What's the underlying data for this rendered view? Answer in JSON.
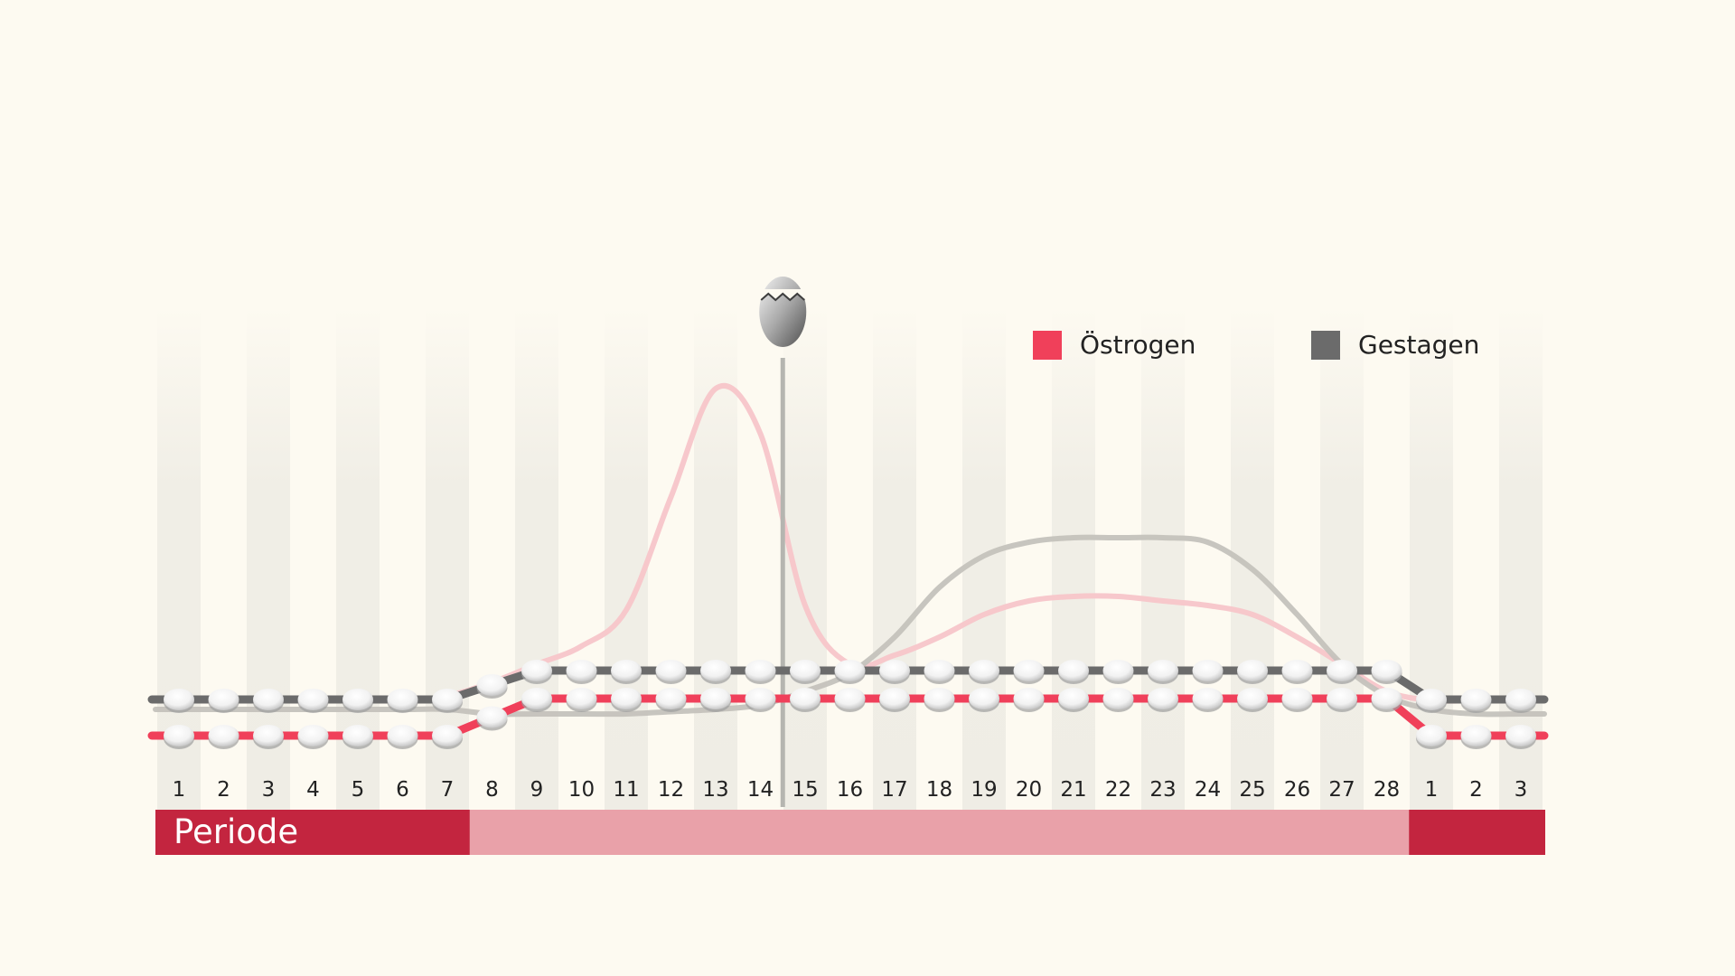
{
  "chart_data": {
    "type": "line",
    "title": "",
    "xlabel": "",
    "ylabel": "",
    "grid": false,
    "legend_position": "top-right",
    "colors": {
      "oestrogen": "#f0405a",
      "gestagen": "#6b6b6b",
      "natural_oestrogen": "#f7c5c9",
      "natural_gestagen": "#c4c2bc",
      "period_band": "#c3253f",
      "cycle_band": "#e9a1a9",
      "column_stripe": "#efede5",
      "background": "#fdfaf1"
    },
    "x_labels": [
      "1",
      "2",
      "3",
      "4",
      "5",
      "6",
      "7",
      "8",
      "9",
      "10",
      "11",
      "12",
      "13",
      "14",
      "15",
      "16",
      "17",
      "18",
      "19",
      "20",
      "21",
      "22",
      "23",
      "24",
      "25",
      "26",
      "27",
      "28",
      "1",
      "2",
      "3"
    ],
    "series": [
      {
        "name": "Östrogen",
        "key": "oestrogen",
        "style": "pill",
        "values": [
          1,
          1,
          1,
          1,
          1,
          1,
          1,
          1.5,
          2,
          2,
          2,
          2,
          2,
          2,
          2,
          2,
          2,
          2,
          2,
          2,
          2,
          2,
          2,
          2,
          2,
          2,
          2,
          2,
          1,
          1,
          1
        ]
      },
      {
        "name": "Gestagen",
        "key": "gestagen",
        "style": "pill",
        "values": [
          1,
          1,
          1,
          1,
          1,
          1,
          1,
          1.4,
          1.8,
          1.8,
          1.8,
          1.8,
          1.8,
          1.8,
          1.8,
          1.8,
          1.8,
          1.8,
          1.8,
          1.8,
          1.8,
          1.8,
          1.8,
          1.8,
          1.8,
          1.8,
          1.8,
          1.8,
          1,
          1,
          1
        ]
      },
      {
        "key": "natural_oestrogen",
        "style": "natural",
        "values": [
          1.1,
          1.1,
          1.1,
          1.1,
          1.1,
          1.1,
          1.2,
          1.5,
          1.9,
          2.3,
          3.1,
          5.6,
          8.0,
          7.0,
          3.2,
          1.9,
          2.1,
          2.5,
          3.0,
          3.3,
          3.4,
          3.4,
          3.3,
          3.2,
          3.0,
          2.5,
          1.9,
          1.3,
          1.1,
          1.1,
          1.1
        ]
      },
      {
        "key": "natural_gestagen",
        "style": "natural",
        "values": [
          0.9,
          0.9,
          0.9,
          0.9,
          0.9,
          0.9,
          0.9,
          0.8,
          0.8,
          0.8,
          0.8,
          0.85,
          0.9,
          1.0,
          1.3,
          1.7,
          2.5,
          3.6,
          4.3,
          4.6,
          4.7,
          4.7,
          4.7,
          4.6,
          4.0,
          3.0,
          1.9,
          1.2,
          0.9,
          0.8,
          0.8
        ]
      }
    ],
    "ovulation_day_index": 13,
    "period_band": {
      "label": "Periode",
      "cycle_days": 28
    }
  },
  "legend": {
    "items": [
      {
        "label": "Östrogen",
        "color": "#f0405a"
      },
      {
        "label": "Gestagen",
        "color": "#6b6b6b"
      }
    ]
  }
}
